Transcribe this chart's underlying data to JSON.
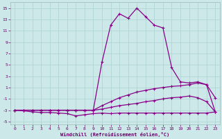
{
  "xlabel": "Windchill (Refroidissement éolien,°C)",
  "background_color": "#cce8e8",
  "grid_color": "#b0d4d4",
  "line_color": "#880088",
  "xlim": [
    -0.5,
    23.5
  ],
  "ylim": [
    -5.5,
    16
  ],
  "xticks": [
    0,
    1,
    2,
    3,
    4,
    5,
    6,
    7,
    8,
    9,
    10,
    11,
    12,
    13,
    14,
    15,
    16,
    17,
    18,
    19,
    20,
    21,
    22,
    23
  ],
  "yticks": [
    -5,
    -3,
    -1,
    1,
    3,
    5,
    7,
    9,
    11,
    13,
    15
  ],
  "line1_x": [
    0,
    1,
    2,
    3,
    4,
    5,
    6,
    7,
    8,
    9,
    10,
    11,
    12,
    13,
    14,
    15,
    16,
    17,
    18,
    19,
    20,
    21,
    22,
    23
  ],
  "line1_y": [
    -3,
    -3.1,
    -3.3,
    -3.4,
    -3.4,
    -3.5,
    -3.6,
    -4.0,
    -3.8,
    -3.6,
    -3.5,
    -3.6,
    -3.5,
    -3.5,
    -3.5,
    -3.5,
    -3.5,
    -3.5,
    -3.5,
    -3.5,
    -3.5,
    -3.5,
    -3.5,
    -3.3
  ],
  "line2_x": [
    0,
    1,
    2,
    3,
    4,
    5,
    6,
    7,
    8,
    9,
    10,
    11,
    12,
    13,
    14,
    15,
    16,
    17,
    18,
    19,
    20,
    21,
    22,
    23
  ],
  "line2_y": [
    -3,
    -3,
    -3,
    -3,
    -3,
    -3,
    -3,
    -3,
    -3,
    -3,
    -2.8,
    -2.5,
    -2.2,
    -2.0,
    -1.8,
    -1.5,
    -1.3,
    -1.0,
    -0.8,
    -0.7,
    -0.5,
    -0.8,
    -1.5,
    -3.3
  ],
  "line3_x": [
    0,
    1,
    2,
    3,
    4,
    5,
    6,
    7,
    8,
    9,
    10,
    11,
    12,
    13,
    14,
    15,
    16,
    17,
    18,
    19,
    20,
    21,
    22,
    23
  ],
  "line3_y": [
    -3,
    -3,
    -3,
    -3,
    -3,
    -3,
    -3,
    -3,
    -3,
    -3,
    -2.2,
    -1.5,
    -0.8,
    -0.3,
    0.2,
    0.5,
    0.8,
    1.0,
    1.2,
    1.3,
    1.5,
    1.8,
    1.5,
    -0.8
  ],
  "line4_x": [
    0,
    1,
    2,
    3,
    4,
    5,
    6,
    7,
    8,
    9,
    10,
    11,
    12,
    13,
    14,
    15,
    16,
    17,
    18,
    19,
    20,
    21,
    22,
    23
  ],
  "line4_y": [
    -3,
    -3,
    -3,
    -3,
    -3,
    -3,
    -3,
    -3,
    -3,
    -3,
    5.5,
    12.0,
    14.0,
    13.2,
    15.0,
    13.5,
    12.0,
    11.5,
    4.5,
    2.0,
    1.8,
    2.0,
    1.5,
    -3.3
  ]
}
